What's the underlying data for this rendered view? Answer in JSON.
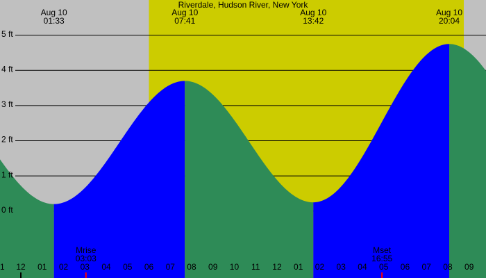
{
  "chart_data": {
    "type": "tide",
    "title": "Riverdale, Hudson River, New York",
    "extremes": [
      {
        "date": "Aug 10",
        "time": "01:33",
        "height": 0.2
      },
      {
        "date": "Aug 10",
        "time": "07:41",
        "height": 3.7
      },
      {
        "date": "Aug 10",
        "time": "13:42",
        "height": 0.25
      },
      {
        "date": "Aug 10",
        "time": "20:04",
        "height": 4.75
      }
    ],
    "moon": [
      {
        "label": "Mrise",
        "time": "03:03"
      },
      {
        "label": "Mset",
        "time": "16:55"
      }
    ],
    "daylight": [
      6.0,
      20.75
    ],
    "xlim": [
      -0.976,
      21.79
    ],
    "ylim": [
      -1.9,
      6
    ],
    "yticks": [
      {
        "value": 0,
        "label": "0 ft"
      },
      {
        "value": 1,
        "label": "1 ft"
      },
      {
        "value": 2,
        "label": "2 ft"
      },
      {
        "value": 3,
        "label": "3 ft"
      },
      {
        "value": 4,
        "label": "4 ft"
      },
      {
        "value": 5,
        "label": "5 ft"
      }
    ],
    "xticks": [
      {
        "value": -1,
        "label": "1"
      },
      {
        "value": 0,
        "label": "12"
      },
      {
        "value": 1,
        "label": "01"
      },
      {
        "value": 2,
        "label": "02"
      },
      {
        "value": 3,
        "label": "03"
      },
      {
        "value": 4,
        "label": "04"
      },
      {
        "value": 5,
        "label": "05"
      },
      {
        "value": 6,
        "label": "06"
      },
      {
        "value": 7,
        "label": "07"
      },
      {
        "value": 8,
        "label": "08"
      },
      {
        "value": 9,
        "label": "09"
      },
      {
        "value": 10,
        "label": "10"
      },
      {
        "value": 11,
        "label": "11"
      },
      {
        "value": 12,
        "label": "12"
      },
      {
        "value": 13,
        "label": "01"
      },
      {
        "value": 14,
        "label": "02"
      },
      {
        "value": 15,
        "label": "03"
      },
      {
        "value": 16,
        "label": "04"
      },
      {
        "value": 17,
        "label": "05"
      },
      {
        "value": 18,
        "label": "06"
      },
      {
        "value": 19,
        "label": "07"
      },
      {
        "value": 20,
        "label": "08"
      },
      {
        "value": 21,
        "label": "09"
      }
    ],
    "night_color": "#c0c0c0",
    "day_color": "#cccc00",
    "rising_color": "#0000ff",
    "falling_color": "#2e8b57",
    "grid": true
  }
}
